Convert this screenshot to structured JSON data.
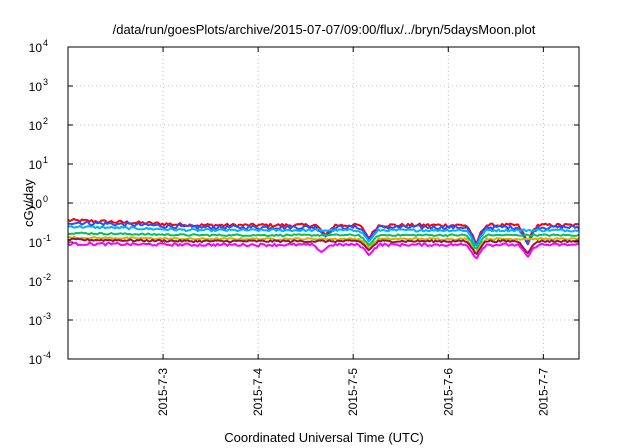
{
  "chart_data": {
    "type": "line",
    "title": "/data/run/goesPlots/archive/2015-07-07/09:00/flux/../bryn/5daysMoon.plot",
    "xlabel": "Coordinated Universal Time (UTC)",
    "ylabel": "cGy/day",
    "yscale": "log",
    "ylim": [
      0.0001,
      10000
    ],
    "y_ticks": [
      {
        "value": 0.0001,
        "base": "10",
        "exp": "-4"
      },
      {
        "value": 0.001,
        "base": "10",
        "exp": "-3"
      },
      {
        "value": 0.01,
        "base": "10",
        "exp": "-2"
      },
      {
        "value": 0.1,
        "base": "10",
        "exp": "-1"
      },
      {
        "value": 1,
        "base": "10",
        "exp": "0"
      },
      {
        "value": 10,
        "base": "10",
        "exp": "1"
      },
      {
        "value": 100,
        "base": "10",
        "exp": "2"
      },
      {
        "value": 1000,
        "base": "10",
        "exp": "3"
      },
      {
        "value": 10000,
        "base": "10",
        "exp": "4"
      }
    ],
    "xlim": [
      "2015-07-02 00:00",
      "2015-07-07 09:00"
    ],
    "x_ticks": [
      "2015-7-3",
      "2015-7-4",
      "2015-7-5",
      "2015-7-6",
      "2015-7-7"
    ],
    "x_tick_dates": [
      "2015-07-03 00:00",
      "2015-07-04 00:00",
      "2015-07-05 00:00",
      "2015-07-06 00:00",
      "2015-07-07 00:00"
    ],
    "grid": true,
    "series": [
      {
        "color": "#ff0000",
        "base": 0.27,
        "start": 0.36,
        "noise": 0.1,
        "dips": [
          {
            "at": "2015-07-04 17:00",
            "to": 0.15
          },
          {
            "at": "2015-07-05 04:00",
            "to": 0.12
          },
          {
            "at": "2015-07-06 07:00",
            "to": 0.08
          },
          {
            "at": "2015-07-06 20:00",
            "to": 0.09
          }
        ]
      },
      {
        "color": "#2b4cff",
        "base": 0.24,
        "start": 0.32,
        "noise": 0.12,
        "dips": [
          {
            "at": "2015-07-04 17:00",
            "to": 0.14
          },
          {
            "at": "2015-07-05 04:00",
            "to": 0.11
          },
          {
            "at": "2015-07-06 07:00",
            "to": 0.07
          },
          {
            "at": "2015-07-06 20:00",
            "to": 0.08
          }
        ]
      },
      {
        "color": "#00b0ff",
        "base": 0.2,
        "start": 0.25,
        "noise": 0.07,
        "dips": [
          {
            "at": "2015-07-05 04:00",
            "to": 0.1
          },
          {
            "at": "2015-07-06 07:00",
            "to": 0.07
          }
        ]
      },
      {
        "color": "#00c060",
        "base": 0.15,
        "start": 0.17,
        "noise": 0.05,
        "dips": [
          {
            "at": "2015-07-05 04:00",
            "to": 0.08
          },
          {
            "at": "2015-07-06 07:00",
            "to": 0.06
          }
        ]
      },
      {
        "color": "#d4b000",
        "base": 0.12,
        "start": 0.13,
        "noise": 0.05,
        "dips": [
          {
            "at": "2015-07-05 04:00",
            "to": 0.07
          },
          {
            "at": "2015-07-06 07:00",
            "to": 0.05
          }
        ]
      },
      {
        "color": "#8a1a3a",
        "base": 0.105,
        "start": 0.115,
        "noise": 0.06,
        "dips": [
          {
            "at": "2015-07-05 04:00",
            "to": 0.06
          },
          {
            "at": "2015-07-06 07:00",
            "to": 0.045
          },
          {
            "at": "2015-07-06 20:00",
            "to": 0.05
          }
        ]
      },
      {
        "color": "#ff00ff",
        "base": 0.085,
        "start": 0.09,
        "noise": 0.08,
        "dips": [
          {
            "at": "2015-07-04 16:00",
            "to": 0.055
          },
          {
            "at": "2015-07-05 04:00",
            "to": 0.045
          },
          {
            "at": "2015-07-06 07:00",
            "to": 0.035
          },
          {
            "at": "2015-07-06 20:00",
            "to": 0.04
          }
        ]
      }
    ]
  }
}
